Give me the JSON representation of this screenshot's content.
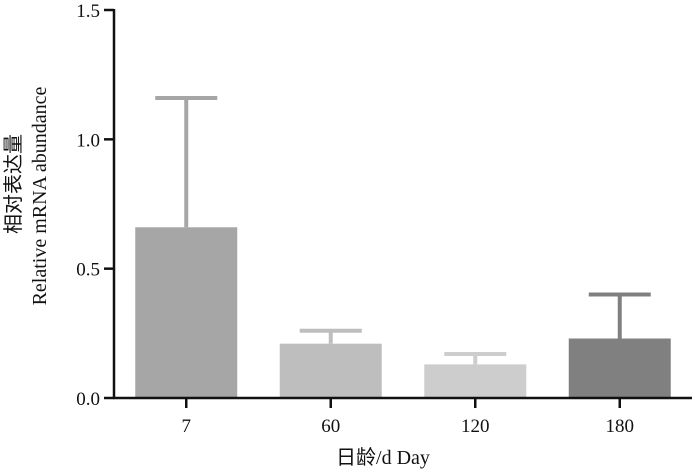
{
  "chart_data": {
    "type": "bar",
    "title": "",
    "xlabel": "日龄/d Day",
    "ylabel_line1": "相对表达量",
    "ylabel_line2": "Relative mRNA abundance",
    "categories": [
      "7",
      "60",
      "120",
      "180"
    ],
    "values": [
      0.66,
      0.21,
      0.13,
      0.23
    ],
    "error_upper": [
      1.16,
      0.26,
      0.17,
      0.4
    ],
    "bar_colors": [
      "#a6a6a6",
      "#bebebe",
      "#cdcdcd",
      "#808080"
    ],
    "ylim": [
      0,
      1.5
    ],
    "yticks": [
      0.0,
      0.5,
      1.0,
      1.5
    ],
    "ytick_labels": [
      "0.0",
      "0.5",
      "1.0",
      "1.5"
    ],
    "grid": false,
    "legend": "none"
  }
}
